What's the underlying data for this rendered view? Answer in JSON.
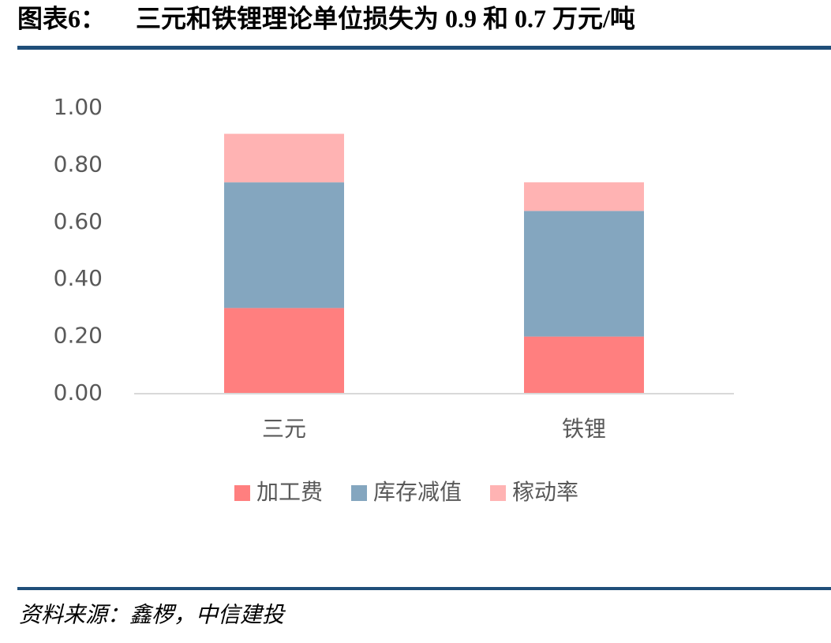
{
  "chart_data": {
    "type": "stacked_bar",
    "label": "图表6：",
    "title": "三元和铁锂理论单位损失为 0.9 和 0.7 万元/吨",
    "source": "资料来源：鑫椤，中信建投",
    "categories": [
      "三元",
      "铁锂"
    ],
    "series": [
      {
        "name": "加工费",
        "color": "#ff7f7f",
        "values": [
          0.3,
          0.2
        ]
      },
      {
        "name": "库存减值",
        "color": "#84a6bf",
        "values": [
          0.44,
          0.44
        ]
      },
      {
        "name": "稼动率",
        "color": "#ffb3b3",
        "values": [
          0.17,
          0.1
        ]
      }
    ],
    "ylim": [
      0,
      1
    ],
    "yticks": [
      {
        "value": 0,
        "label": "0.00"
      },
      {
        "value": 0.2,
        "label": "0.20"
      },
      {
        "value": 0.4,
        "label": "0.40"
      },
      {
        "value": 0.6,
        "label": "0.60"
      },
      {
        "value": 0.8,
        "label": "0.80"
      },
      {
        "value": 1,
        "label": "1.00"
      }
    ],
    "grid": false,
    "legend": "bottom"
  }
}
